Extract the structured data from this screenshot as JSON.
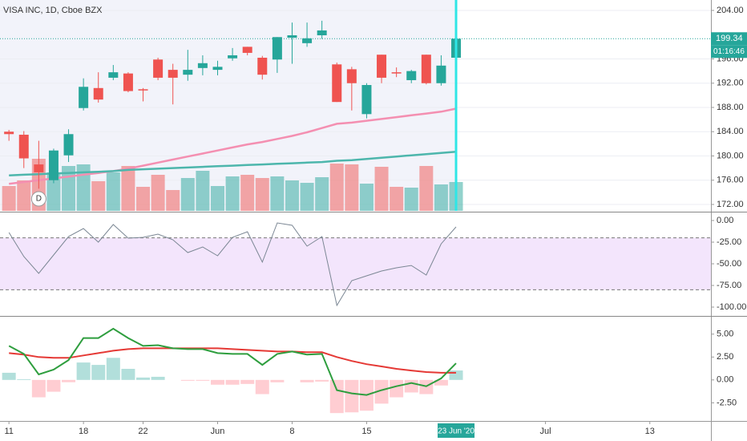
{
  "chart_data": [
    {
      "type": "candlestick",
      "title": "VISA INC, 1D, Cboe BZX",
      "x": [
        0,
        1,
        2,
        3,
        4,
        5,
        6,
        7,
        8,
        9,
        10,
        11,
        12,
        13,
        14,
        15,
        16,
        17,
        18,
        19,
        20,
        21,
        22,
        23,
        24,
        25,
        26,
        27,
        28,
        29,
        30
      ],
      "xlim": [
        -0.6,
        47.1
      ],
      "xticks": [
        {
          "value": 0,
          "label": "11"
        },
        {
          "value": 5,
          "label": "18"
        },
        {
          "value": 9,
          "label": "22"
        },
        {
          "value": 14,
          "label": "Jun"
        },
        {
          "value": 19,
          "label": "8"
        },
        {
          "value": 24,
          "label": "15"
        },
        {
          "value": 36,
          "label": "Jul"
        },
        {
          "value": 43,
          "label": "13"
        }
      ],
      "cursor_label": "23 Jun '20",
      "open": [
        184.0,
        183.5,
        178.6,
        176.0,
        180.1,
        187.9,
        191.2,
        192.9,
        193.6,
        191.0,
        195.9,
        194.2,
        193.4,
        194.5,
        194.2,
        196.1,
        198.0,
        196.2,
        195.9,
        199.5,
        198.6,
        199.9,
        195.1,
        194.3,
        186.9,
        196.7,
        193.8,
        192.5,
        196.7,
        192.0,
        196.2
      ],
      "high": [
        184.3,
        184.1,
        182.5,
        181.2,
        184.4,
        192.8,
        193.8,
        195.0,
        193.8,
        191.2,
        196.2,
        195.2,
        197.5,
        196.6,
        195.7,
        197.8,
        198.0,
        196.5,
        199.6,
        202.0,
        202.0,
        202.3,
        195.4,
        194.7,
        192.0,
        196.7,
        194.6,
        194.2,
        196.7,
        196.6,
        199.9
      ],
      "low": [
        182.5,
        178.0,
        174.6,
        175.5,
        179.0,
        187.5,
        188.8,
        192.5,
        190.5,
        189.0,
        192.5,
        188.5,
        192.4,
        193.3,
        193.3,
        195.7,
        196.6,
        192.6,
        193.7,
        195.2,
        198.0,
        199.3,
        188.9,
        187.5,
        186.2,
        192.0,
        193.0,
        192.0,
        191.8,
        191.6,
        196.0
      ],
      "close": [
        183.6,
        179.6,
        177.3,
        180.9,
        183.6,
        191.4,
        189.3,
        193.8,
        190.7,
        190.8,
        192.9,
        192.9,
        194.2,
        195.3,
        194.7,
        196.6,
        197.0,
        193.4,
        199.6,
        199.9,
        199.4,
        200.7,
        188.9,
        192.0,
        191.7,
        192.9,
        193.6,
        194.0,
        192.0,
        194.9,
        199.34
      ],
      "volume": [
        6.2,
        7.6,
        13.0,
        9.6,
        11.2,
        11.6,
        7.4,
        9.6,
        11.2,
        6.0,
        9.0,
        5.2,
        8.2,
        10.0,
        6.2,
        8.6,
        9.0,
        8.2,
        8.6,
        7.6,
        7.0,
        8.4,
        11.8,
        11.6,
        6.8,
        11.0,
        6.0,
        5.8,
        11.2,
        6.6,
        7.2
      ],
      "up_color": "#26a69a",
      "down_color": "#ef5350",
      "moving_averages": [
        {
          "color": "#f48fb1",
          "values": [
            175.4,
            175.7,
            176.0,
            176.3,
            176.6,
            176.9,
            177.2,
            177.5,
            177.9,
            178.4,
            178.9,
            179.4,
            179.9,
            180.4,
            180.9,
            181.4,
            181.9,
            182.3,
            182.8,
            183.3,
            183.9,
            184.6,
            185.3,
            185.5,
            185.8,
            186.1,
            186.4,
            186.7,
            187.0,
            187.3,
            187.8
          ]
        },
        {
          "color": "#4db6ac",
          "values": [
            176.8,
            176.9,
            177.0,
            177.1,
            177.2,
            177.3,
            177.4,
            177.5,
            177.7,
            177.8,
            177.9,
            178.0,
            178.1,
            178.2,
            178.3,
            178.4,
            178.5,
            178.6,
            178.7,
            178.8,
            178.9,
            179.0,
            179.2,
            179.3,
            179.5,
            179.7,
            179.9,
            180.1,
            180.3,
            180.5,
            180.7
          ]
        }
      ],
      "last_price": 199.34,
      "countdown": "01:16:46",
      "event_marker": "D",
      "ylim": [
        170.94,
        205.72
      ],
      "yticks": [
        {
          "value": 204,
          "label": "204.00"
        },
        {
          "value": 196,
          "label": "196.00"
        },
        {
          "value": 192,
          "label": "192.00"
        },
        {
          "value": 188,
          "label": "188.00"
        },
        {
          "value": 184,
          "label": "184.00"
        },
        {
          "value": 180,
          "label": "180.00"
        },
        {
          "value": 176,
          "label": "176.00"
        },
        {
          "value": 172,
          "label": "172.00"
        }
      ],
      "grid": true
    },
    {
      "type": "line",
      "values": [
        -13.9,
        -41.7,
        -61.1,
        -39.8,
        -18.5,
        -9.3,
        -25.0,
        -4.6,
        -20.4,
        -19.4,
        -15.7,
        -22.2,
        -37.0,
        -30.6,
        -40.7,
        -19.4,
        -13.0,
        -48.1,
        -2.8,
        -5.6,
        -29.6,
        -18.5,
        -98.1,
        -69.4,
        -63.9,
        -58.3,
        -54.6,
        -51.9,
        -63.0,
        -26.9,
        -7.4
      ],
      "color": "#7b8794",
      "band": [
        -20,
        -80
      ],
      "band_color": "#f3e5fc",
      "ylim": [
        -109.26,
        9.26
      ],
      "yticks": [
        {
          "value": 0,
          "label": "0.00"
        },
        {
          "value": -25,
          "label": "-25.00"
        },
        {
          "value": -50,
          "label": "-50.00"
        },
        {
          "value": -75,
          "label": "-75.00"
        },
        {
          "value": -100,
          "label": "-100.00"
        }
      ]
    },
    {
      "type": "macd",
      "macd": [
        3.71,
        2.84,
        0.6,
        1.12,
        2.16,
        4.57,
        4.57,
        5.6,
        4.57,
        3.71,
        3.79,
        3.45,
        3.36,
        3.36,
        2.93,
        2.84,
        2.84,
        1.64,
        2.84,
        3.1,
        2.76,
        2.84,
        -1.12,
        -1.47,
        -1.64,
        -1.12,
        -0.69,
        -0.34,
        -0.69,
        0.17,
        1.81
      ],
      "signal": [
        2.93,
        2.76,
        2.5,
        2.41,
        2.41,
        2.67,
        2.93,
        3.19,
        3.36,
        3.45,
        3.45,
        3.45,
        3.45,
        3.45,
        3.45,
        3.36,
        3.28,
        3.19,
        3.1,
        3.1,
        3.02,
        3.02,
        2.5,
        2.07,
        1.72,
        1.47,
        1.21,
        1.03,
        0.86,
        0.78,
        0.78
      ],
      "histogram": [
        0.78,
        0.08,
        -1.9,
        -1.29,
        -0.25,
        1.9,
        1.64,
        2.41,
        1.21,
        0.26,
        0.34,
        0,
        -0.09,
        -0.09,
        -0.52,
        -0.52,
        -0.44,
        -1.55,
        -0.26,
        0,
        -0.26,
        -0.18,
        -3.62,
        -3.54,
        -3.36,
        -2.59,
        -1.9,
        -1.37,
        -1.55,
        -0.61,
        1.03
      ],
      "macd_color": "#2e9e3e",
      "signal_color": "#e53935",
      "hist_up_color": "#b2dfdb",
      "hist_down_color": "#ffcdd2",
      "ylim": [
        -4.48,
        6.9
      ],
      "yticks": [
        {
          "value": 5,
          "label": "5.00"
        },
        {
          "value": 2.5,
          "label": "2.50"
        },
        {
          "value": 0,
          "label": "0.00"
        },
        {
          "value": -2.5,
          "label": "-2.50"
        }
      ]
    }
  ]
}
